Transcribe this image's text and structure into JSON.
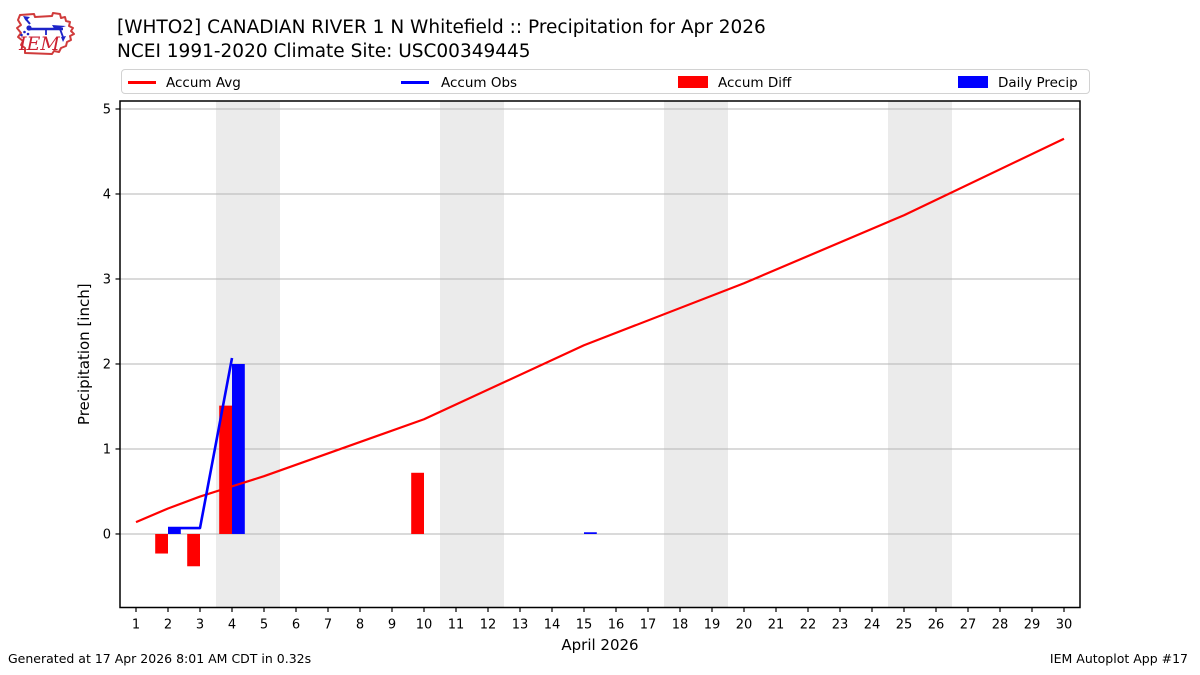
{
  "header": {
    "title_line1": "[WHTO2] CANADIAN RIVER 1 N Whitefield :: Precipitation for Apr 2026",
    "title_line2": "NCEI 1991-2020 Climate Site: USC00349445",
    "logo_text": "IEM"
  },
  "legend": {
    "items": [
      {
        "label": "Accum Avg",
        "swatch": "line",
        "color": "#ff0000"
      },
      {
        "label": "Accum Obs",
        "swatch": "line",
        "color": "#0000ff"
      },
      {
        "label": "Accum Diff",
        "swatch": "rect",
        "color": "#ff0000"
      },
      {
        "label": "Daily Precip",
        "swatch": "rect",
        "color": "#0000ff"
      }
    ]
  },
  "footer": {
    "generated": "Generated at 17 Apr 2026 8:01 AM CDT in 0.32s",
    "app": "IEM Autoplot App #17"
  },
  "chart_data": {
    "type": "line+bar",
    "title": "[WHTO2] CANADIAN RIVER 1 N Whitefield :: Precipitation for Apr 2026",
    "subtitle": "NCEI 1991-2020 Climate Site: USC00349445",
    "xlabel": "April 2026",
    "ylabel": "Precipitation [inch]",
    "xlim": [
      0.5,
      30.5
    ],
    "ylim": [
      -0.865,
      5.094
    ],
    "x_ticks": [
      1,
      2,
      3,
      4,
      5,
      6,
      7,
      8,
      9,
      10,
      11,
      12,
      13,
      14,
      15,
      16,
      17,
      18,
      19,
      20,
      21,
      22,
      23,
      24,
      25,
      26,
      27,
      28,
      29,
      30
    ],
    "y_ticks": [
      0,
      1,
      2,
      3,
      4,
      5
    ],
    "grid": "horizontal",
    "grid_color": "#b4b4b4",
    "band_color": "#ebebeb",
    "frame_color": "#000000",
    "weekend_bands_days": [
      [
        3.5,
        5.5
      ],
      [
        10.5,
        12.5
      ],
      [
        17.5,
        19.5
      ],
      [
        24.5,
        26.5
      ]
    ],
    "series": [
      {
        "name": "Accum Avg",
        "type": "line",
        "color": "#ff0000",
        "width": 2.2,
        "points": [
          [
            1,
            0.14
          ],
          [
            2,
            0.3
          ],
          [
            3,
            0.44
          ],
          [
            4,
            0.56
          ],
          [
            5,
            0.68
          ],
          [
            10,
            1.35
          ],
          [
            15,
            2.22
          ],
          [
            20,
            2.95
          ],
          [
            25,
            3.75
          ],
          [
            30,
            4.65
          ]
        ]
      },
      {
        "name": "Accum Obs",
        "type": "line",
        "color": "#0000ff",
        "width": 2.6,
        "points": [
          [
            2,
            0.07
          ],
          [
            3,
            0.07
          ],
          [
            4,
            2.07
          ]
        ]
      },
      {
        "name": "Accum Diff",
        "type": "bar",
        "color": "#ff0000",
        "offset_days": -0.4,
        "width_days": 0.4,
        "points": [
          [
            2,
            -0.23
          ],
          [
            3,
            -0.38
          ],
          [
            4,
            1.51
          ],
          [
            10,
            0.72
          ]
        ]
      },
      {
        "name": "Daily Precip",
        "type": "bar",
        "color": "#0000ff",
        "offset_days": 0,
        "width_days": 0.4,
        "points": [
          [
            2,
            0.07
          ],
          [
            4,
            2.0
          ],
          [
            15,
            0.02
          ]
        ]
      }
    ]
  }
}
